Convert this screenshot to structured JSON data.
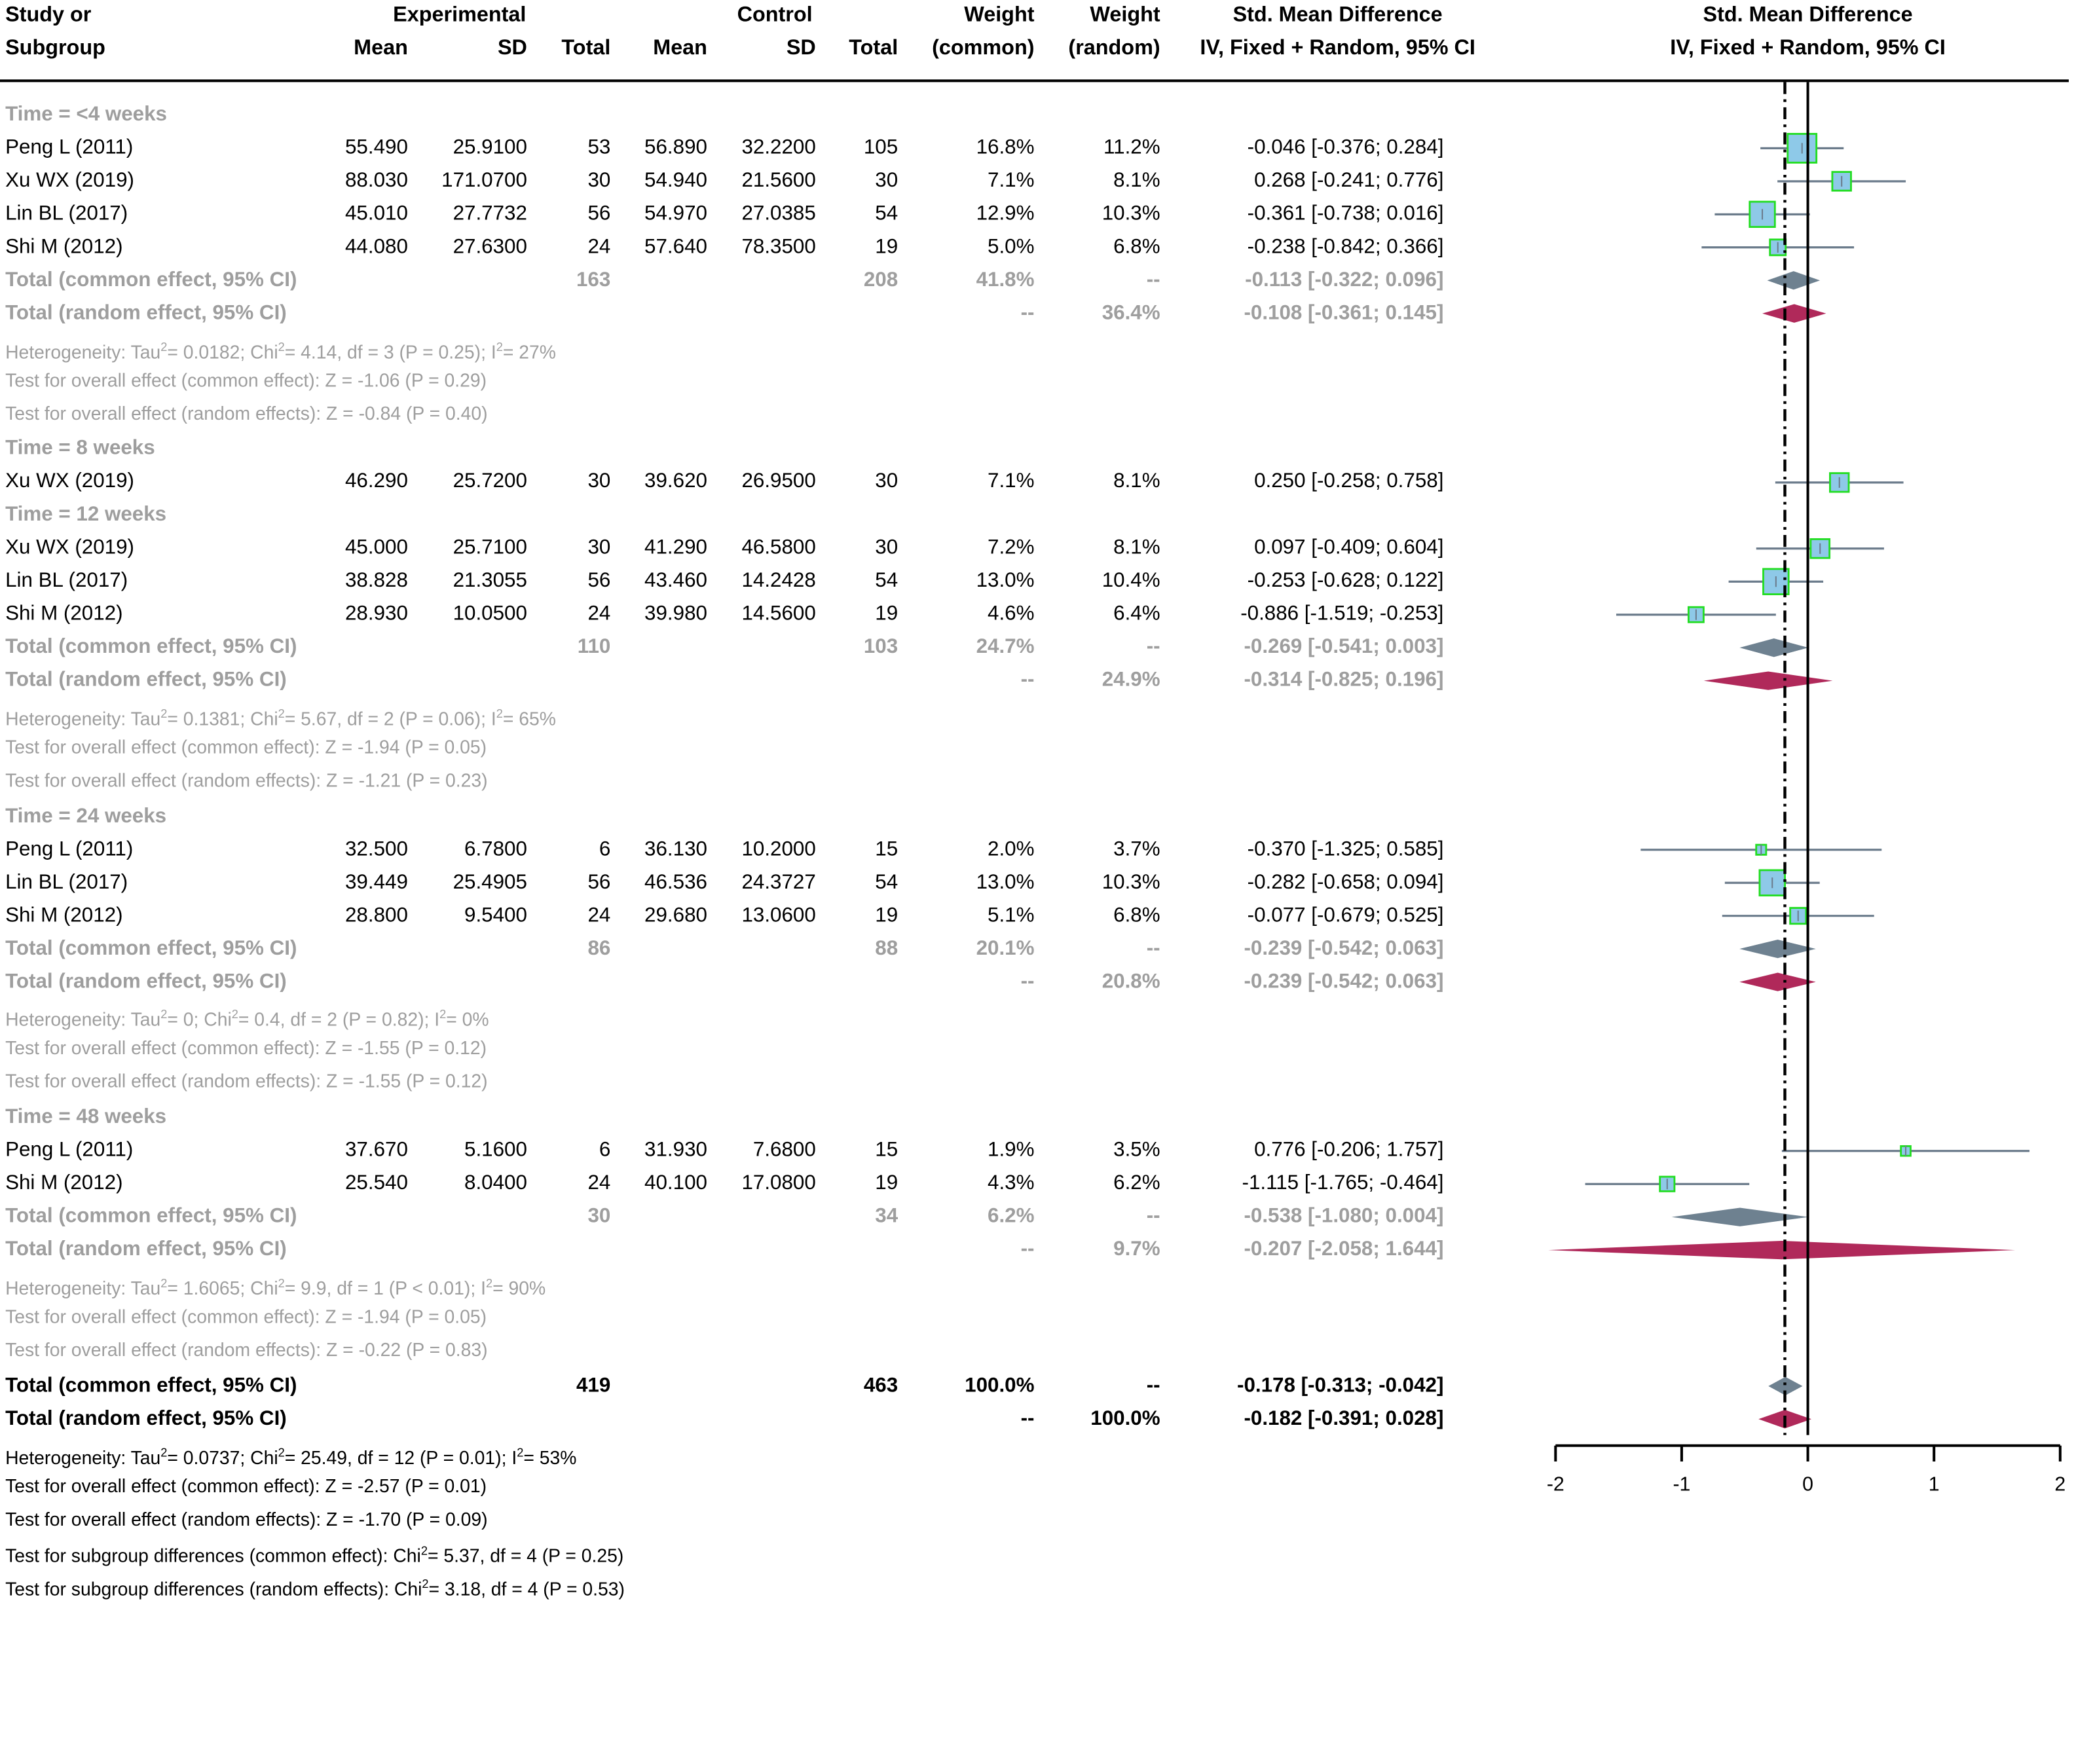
{
  "header": {
    "study_l1": "Study or",
    "study_l2": "Subgroup",
    "experimental": "Experimental",
    "control": "Control",
    "mean": "Mean",
    "sd": "SD",
    "total": "Total",
    "weight_l1": "Weight",
    "weight_common_l2": "(common)",
    "weight_random_l2": "(random)",
    "smd_l1": "Std. Mean Difference",
    "smd_l2": "IV, Fixed + Random, 95% CI"
  },
  "colors": {
    "study_fill": "#8ec9e8",
    "study_border": "#22dd22",
    "line": "#6b7b8b",
    "common_diamond": "#6e8190",
    "random_diamond": "#b0295a"
  },
  "chart_data": {
    "type": "forest",
    "title": "Std. Mean Difference",
    "subtitle": "IV, Fixed + Random, 95% CI",
    "xlim": [
      -2,
      2
    ],
    "xticks": [
      "-2",
      "-1",
      "0",
      "1",
      "2"
    ],
    "null_value": 0,
    "overall_random_estimate": -0.182,
    "rows": [
      {
        "kind": "group",
        "label": "Time = <4 weeks"
      },
      {
        "kind": "study",
        "label": "Peng L (2011)",
        "e_mean": "55.490",
        "e_sd": "25.9100",
        "e_n": "53",
        "c_mean": "56.890",
        "c_sd": "32.2200",
        "c_n": "105",
        "w_common": "16.8%",
        "w_random": "11.2%",
        "ci_text": "-0.046 [-0.376;  0.284]",
        "est": -0.046,
        "lo": -0.376,
        "hi": 0.284,
        "w": 16.8
      },
      {
        "kind": "study",
        "label": "Xu WX (2019)",
        "e_mean": "88.030",
        "e_sd": "171.0700",
        "e_n": "30",
        "c_mean": "54.940",
        "c_sd": "21.5600",
        "c_n": "30",
        "w_common": "7.1%",
        "w_random": "8.1%",
        "ci_text": "0.268 [-0.241;  0.776]",
        "est": 0.268,
        "lo": -0.241,
        "hi": 0.776,
        "w": 7.1
      },
      {
        "kind": "study",
        "label": "Lin BL (2017)",
        "e_mean": "45.010",
        "e_sd": "27.7732",
        "e_n": "56",
        "c_mean": "54.970",
        "c_sd": "27.0385",
        "c_n": "54",
        "w_common": "12.9%",
        "w_random": "10.3%",
        "ci_text": "-0.361 [-0.738;  0.016]",
        "est": -0.361,
        "lo": -0.738,
        "hi": 0.016,
        "w": 12.9
      },
      {
        "kind": "study",
        "label": "Shi M (2012)",
        "e_mean": "44.080",
        "e_sd": "27.6300",
        "e_n": "24",
        "c_mean": "57.640",
        "c_sd": "78.3500",
        "c_n": "19",
        "w_common": "5.0%",
        "w_random": "6.8%",
        "ci_text": "-0.238 [-0.842;  0.366]",
        "est": -0.238,
        "lo": -0.842,
        "hi": 0.366,
        "w": 5.0
      },
      {
        "kind": "common",
        "label": "Total (common effect, 95% CI)",
        "e_n": "163",
        "c_n": "208",
        "w_common": "41.8%",
        "w_random": "--",
        "ci_text": "-0.113 [-0.322;  0.096]",
        "est": -0.113,
        "lo": -0.322,
        "hi": 0.096
      },
      {
        "kind": "random",
        "label": "Total (random effect, 95% CI)",
        "w_common": "--",
        "w_random": "36.4%",
        "ci_text": "-0.108 [-0.361;  0.145]",
        "est": -0.108,
        "lo": -0.361,
        "hi": 0.145
      },
      {
        "kind": "het",
        "pre": "Heterogeneity: Tau",
        "tau2": "= 0.0182; Chi",
        "chi2": "= 4.14, df = 3 (P = 0.25); I",
        "i2": "= 27%"
      },
      {
        "kind": "text",
        "label": "Test for overall effect (common effect): Z = -1.06 (P = 0.29)"
      },
      {
        "kind": "text",
        "label": "Test for overall effect (random effects): Z = -0.84 (P = 0.40)"
      },
      {
        "kind": "gap"
      },
      {
        "kind": "group",
        "label": "Time = 8 weeks"
      },
      {
        "kind": "study",
        "label": "Xu WX (2019)",
        "e_mean": "46.290",
        "e_sd": "25.7200",
        "e_n": "30",
        "c_mean": "39.620",
        "c_sd": "26.9500",
        "c_n": "30",
        "w_common": "7.1%",
        "w_random": "8.1%",
        "ci_text": "0.250 [-0.258;  0.758]",
        "est": 0.25,
        "lo": -0.258,
        "hi": 0.758,
        "w": 7.1
      },
      {
        "kind": "group",
        "label": "Time = 12 weeks"
      },
      {
        "kind": "study",
        "label": "Xu WX (2019)",
        "e_mean": "45.000",
        "e_sd": "25.7100",
        "e_n": "30",
        "c_mean": "41.290",
        "c_sd": "46.5800",
        "c_n": "30",
        "w_common": "7.2%",
        "w_random": "8.1%",
        "ci_text": "0.097 [-0.409;  0.604]",
        "est": 0.097,
        "lo": -0.409,
        "hi": 0.604,
        "w": 7.2
      },
      {
        "kind": "study",
        "label": "Lin BL (2017)",
        "e_mean": "38.828",
        "e_sd": "21.3055",
        "e_n": "56",
        "c_mean": "43.460",
        "c_sd": "14.2428",
        "c_n": "54",
        "w_common": "13.0%",
        "w_random": "10.4%",
        "ci_text": "-0.253 [-0.628;  0.122]",
        "est": -0.253,
        "lo": -0.628,
        "hi": 0.122,
        "w": 13.0
      },
      {
        "kind": "study",
        "label": "Shi M (2012)",
        "e_mean": "28.930",
        "e_sd": "10.0500",
        "e_n": "24",
        "c_mean": "39.980",
        "c_sd": "14.5600",
        "c_n": "19",
        "w_common": "4.6%",
        "w_random": "6.4%",
        "ci_text": "-0.886 [-1.519; -0.253]",
        "est": -0.886,
        "lo": -1.519,
        "hi": -0.253,
        "w": 4.6
      },
      {
        "kind": "common",
        "label": "Total (common effect, 95% CI)",
        "e_n": "110",
        "c_n": "103",
        "w_common": "24.7%",
        "w_random": "--",
        "ci_text": "-0.269 [-0.541;  0.003]",
        "est": -0.269,
        "lo": -0.541,
        "hi": 0.003
      },
      {
        "kind": "random",
        "label": "Total (random effect, 95% CI)",
        "w_common": "--",
        "w_random": "24.9%",
        "ci_text": "-0.314 [-0.825;  0.196]",
        "est": -0.314,
        "lo": -0.825,
        "hi": 0.196
      },
      {
        "kind": "het",
        "pre": "Heterogeneity: Tau",
        "tau2": "= 0.1381; Chi",
        "chi2": "= 5.67, df = 2 (P = 0.06); I",
        "i2": "= 65%"
      },
      {
        "kind": "text",
        "label": "Test for overall effect (common effect): Z = -1.94 (P = 0.05)"
      },
      {
        "kind": "text",
        "label": "Test for overall effect (random effects): Z = -1.21 (P = 0.23)"
      },
      {
        "kind": "gap"
      },
      {
        "kind": "group",
        "label": "Time = 24 weeks"
      },
      {
        "kind": "study",
        "label": "Peng L (2011)",
        "e_mean": "32.500",
        "e_sd": "6.7800",
        "e_n": "6",
        "c_mean": "36.130",
        "c_sd": "10.2000",
        "c_n": "15",
        "w_common": "2.0%",
        "w_random": "3.7%",
        "ci_text": "-0.370 [-1.325;  0.585]",
        "est": -0.37,
        "lo": -1.325,
        "hi": 0.585,
        "w": 2.0
      },
      {
        "kind": "study",
        "label": "Lin BL (2017)",
        "e_mean": "39.449",
        "e_sd": "25.4905",
        "e_n": "56",
        "c_mean": "46.536",
        "c_sd": "24.3727",
        "c_n": "54",
        "w_common": "13.0%",
        "w_random": "10.3%",
        "ci_text": "-0.282 [-0.658;  0.094]",
        "est": -0.282,
        "lo": -0.658,
        "hi": 0.094,
        "w": 13.0
      },
      {
        "kind": "study",
        "label": "Shi M (2012)",
        "e_mean": "28.800",
        "e_sd": "9.5400",
        "e_n": "24",
        "c_mean": "29.680",
        "c_sd": "13.0600",
        "c_n": "19",
        "w_common": "5.1%",
        "w_random": "6.8%",
        "ci_text": "-0.077 [-0.679;  0.525]",
        "est": -0.077,
        "lo": -0.679,
        "hi": 0.525,
        "w": 5.1
      },
      {
        "kind": "common",
        "label": "Total (common effect, 95% CI)",
        "e_n": "86",
        "c_n": "88",
        "w_common": "20.1%",
        "w_random": "--",
        "ci_text": "-0.239 [-0.542;  0.063]",
        "est": -0.239,
        "lo": -0.542,
        "hi": 0.063
      },
      {
        "kind": "random",
        "label": "Total (random effect, 95% CI)",
        "w_common": "--",
        "w_random": "20.8%",
        "ci_text": "-0.239 [-0.542;  0.063]",
        "est": -0.239,
        "lo": -0.542,
        "hi": 0.063
      },
      {
        "kind": "het",
        "pre": "Heterogeneity: Tau",
        "tau2": "= 0; Chi",
        "chi2": "= 0.4, df = 2 (P = 0.82); I",
        "i2": "= 0%"
      },
      {
        "kind": "text",
        "label": "Test for overall effect (common effect): Z = -1.55 (P = 0.12)"
      },
      {
        "kind": "text",
        "label": "Test for overall effect (random effects): Z = -1.55 (P = 0.12)"
      },
      {
        "kind": "gap"
      },
      {
        "kind": "group",
        "label": "Time = 48 weeks"
      },
      {
        "kind": "study",
        "label": "Peng L (2011)",
        "e_mean": "37.670",
        "e_sd": "5.1600",
        "e_n": "6",
        "c_mean": "31.930",
        "c_sd": "7.6800",
        "c_n": "15",
        "w_common": "1.9%",
        "w_random": "3.5%",
        "ci_text": "0.776 [-0.206;  1.757]",
        "est": 0.776,
        "lo": -0.206,
        "hi": 1.757,
        "w": 1.9
      },
      {
        "kind": "study",
        "label": "Shi M (2012)",
        "e_mean": "25.540",
        "e_sd": "8.0400",
        "e_n": "24",
        "c_mean": "40.100",
        "c_sd": "17.0800",
        "c_n": "19",
        "w_common": "4.3%",
        "w_random": "6.2%",
        "ci_text": "-1.115 [-1.765; -0.464]",
        "est": -1.115,
        "lo": -1.765,
        "hi": -0.464,
        "w": 4.3
      },
      {
        "kind": "common",
        "label": "Total (common effect, 95% CI)",
        "e_n": "30",
        "c_n": "34",
        "w_common": "6.2%",
        "w_random": "--",
        "ci_text": "-0.538 [-1.080;  0.004]",
        "est": -0.538,
        "lo": -1.08,
        "hi": 0.004
      },
      {
        "kind": "random",
        "label": "Total (random effect, 95% CI)",
        "w_common": "--",
        "w_random": "9.7%",
        "ci_text": "-0.207 [-2.058;  1.644]",
        "est": -0.207,
        "lo": -2.058,
        "hi": 1.644
      },
      {
        "kind": "het",
        "pre": "Heterogeneity: Tau",
        "tau2": "= 1.6065; Chi",
        "chi2": "= 9.9, df = 1 (P < 0.01); I",
        "i2": "= 90%"
      },
      {
        "kind": "text",
        "label": "Test for overall effect (common effect): Z = -1.94 (P = 0.05)"
      },
      {
        "kind": "text",
        "label": "Test for overall effect (random effects): Z = -0.22 (P = 0.83)"
      },
      {
        "kind": "gap"
      },
      {
        "kind": "overall_common",
        "label": "Total (common effect, 95% CI)",
        "e_n": "419",
        "c_n": "463",
        "w_common": "100.0%",
        "w_random": "--",
        "ci_text": "-0.178 [-0.313; -0.042]",
        "est": -0.178,
        "lo": -0.313,
        "hi": -0.042
      },
      {
        "kind": "overall_random",
        "label": "Total (random effect, 95% CI)",
        "w_common": "--",
        "w_random": "100.0%",
        "ci_text": "-0.182 [-0.391;  0.028]",
        "est": -0.182,
        "lo": -0.391,
        "hi": 0.028
      },
      {
        "kind": "het_black",
        "pre": "Heterogeneity: Tau",
        "tau2": "= 0.0737; Chi",
        "chi2": "= 25.49, df = 12 (P = 0.01); I",
        "i2": "= 53%"
      },
      {
        "kind": "text_black",
        "label": "Test for overall effect (common effect): Z = -2.57 (P = 0.01)"
      },
      {
        "kind": "text_black",
        "label": "Test for overall effect (random effects): Z = -1.70 (P = 0.09)"
      },
      {
        "kind": "subgroup",
        "pre": "Test for subgroup differences (common effect): Chi",
        "post": "= 5.37, df = 4 (P = 0.25)"
      },
      {
        "kind": "subgroup",
        "pre": "Test for subgroup differences (random effects): Chi",
        "post": "= 3.18, df = 4 (P = 0.53)"
      }
    ]
  }
}
